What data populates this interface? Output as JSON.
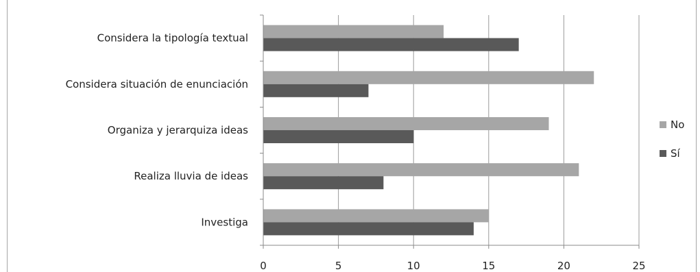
{
  "chart_data": {
    "type": "bar",
    "orientation": "horizontal",
    "categories": [
      "Considera la tipología textual",
      "Considera situación de enunciación",
      "Organiza y jerarquiza ideas",
      "Realiza lluvia de ideas",
      "Investiga"
    ],
    "series": [
      {
        "name": "No",
        "color": "#a6a6a6",
        "values": [
          12,
          22,
          19,
          21,
          15
        ]
      },
      {
        "name": "Sí",
        "color": "#595959",
        "values": [
          17,
          7,
          10,
          8,
          14
        ]
      }
    ],
    "xlim": [
      0,
      25
    ],
    "xticks": [
      "0",
      "5",
      "10",
      "15",
      "20",
      "25"
    ],
    "grid": true,
    "legend_position": "right"
  }
}
